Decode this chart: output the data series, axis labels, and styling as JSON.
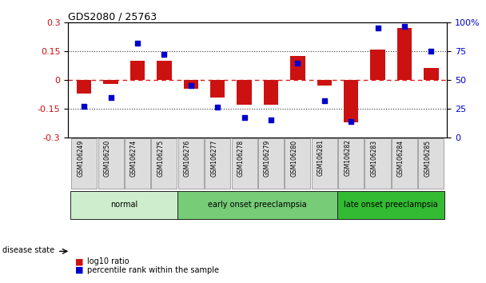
{
  "title": "GDS2080 / 25763",
  "samples": [
    "GSM106249",
    "GSM106250",
    "GSM106274",
    "GSM106275",
    "GSM106276",
    "GSM106277",
    "GSM106278",
    "GSM106279",
    "GSM106280",
    "GSM106281",
    "GSM106282",
    "GSM106283",
    "GSM106284",
    "GSM106285"
  ],
  "log10_ratio": [
    -0.07,
    -0.02,
    0.1,
    0.1,
    -0.045,
    -0.09,
    -0.13,
    -0.13,
    0.125,
    -0.03,
    -0.22,
    0.16,
    0.27,
    0.065
  ],
  "percentile_rank": [
    27,
    35,
    82,
    72,
    45,
    26,
    17,
    15,
    65,
    32,
    14,
    95,
    97,
    75
  ],
  "bar_color": "#cc1111",
  "dot_color": "#0000cc",
  "groups": [
    {
      "label": "normal",
      "start": 0,
      "end": 4,
      "color": "#cceecc"
    },
    {
      "label": "early onset preeclampsia",
      "start": 4,
      "end": 10,
      "color": "#77cc77"
    },
    {
      "label": "late onset preeclampsia",
      "start": 10,
      "end": 14,
      "color": "#33bb33"
    }
  ],
  "ylim_left": [
    -0.3,
    0.3
  ],
  "ylim_right": [
    0,
    100
  ],
  "yticks_left": [
    -0.3,
    -0.15,
    0,
    0.15,
    0.3
  ],
  "ytick_labels_left": [
    "-0.3",
    "-0.15",
    "0",
    "0.15",
    "0.3"
  ],
  "yticks_right": [
    0,
    25,
    50,
    75,
    100
  ],
  "ytick_labels_right": [
    "0",
    "25",
    "50",
    "75",
    "100%"
  ],
  "hline_zero_color": "#dd2222",
  "hline_dotted_color": "#333333",
  "background_color": "#ffffff",
  "tick_label_bg": "#dddddd"
}
